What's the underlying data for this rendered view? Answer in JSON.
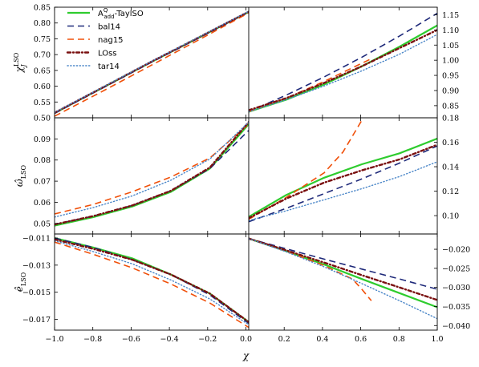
{
  "chart_data": {
    "type": "line",
    "xlabel": "χ",
    "x_ticks": [
      "−1.0",
      "−0.8",
      "−0.6",
      "−0.4",
      "−0.2",
      "0.0",
      "0.2",
      "0.4",
      "0.6",
      "0.8",
      "1.0"
    ],
    "legend": {
      "placement": "top-left",
      "entries": [
        {
          "key": "A",
          "label_main": "A",
          "label_sup": "Q",
          "label_sub": "add",
          "label_rest": "-TaylSO",
          "color": "#2ecc2e",
          "dash": "solid"
        },
        {
          "key": "B",
          "label_main": "bal14",
          "color": "#1f2a7a",
          "dash": "long-dash"
        },
        {
          "key": "N",
          "label_main": "nag15",
          "color": "#f0500a",
          "dash": "long-dash"
        },
        {
          "key": "L",
          "label_main": "LOss",
          "color": "#7a1010",
          "dash": "dash-dot"
        },
        {
          "key": "T",
          "label_main": "tar14",
          "color": "#4a86c8",
          "dash": "dotted"
        }
      ]
    },
    "rows": [
      {
        "ylabel_main": "χ",
        "ylabel_sub": "J",
        "ylabel_sup": "LSO",
        "left": {
          "xlim": [
            -1,
            0
          ],
          "ylim": [
            0.5,
            0.85
          ],
          "yticks": [
            0.5,
            0.55,
            0.6,
            0.65,
            0.7,
            0.75,
            0.8,
            0.85
          ],
          "ytick_labels": [
            "0.50",
            "0.55",
            "0.60",
            "0.65",
            "0.70",
            "0.75",
            "0.80",
            "0.85"
          ],
          "series": [
            {
              "key": "A",
              "x": [
                -1.0,
                -0.75,
                -0.5,
                -0.25,
                0.0
              ],
              "y": [
                0.515,
                0.596,
                0.677,
                0.756,
                0.835
              ]
            },
            {
              "key": "B",
              "x": [
                -1.0,
                -0.75,
                -0.5,
                -0.25,
                0.0
              ],
              "y": [
                0.514,
                0.595,
                0.676,
                0.755,
                0.834
              ]
            },
            {
              "key": "N",
              "x": [
                -1.0,
                -0.75,
                -0.5,
                -0.25,
                0.0
              ],
              "y": [
                0.505,
                0.585,
                0.667,
                0.749,
                0.832
              ]
            },
            {
              "key": "L",
              "x": [
                -1.0,
                -0.75,
                -0.5,
                -0.25,
                0.0
              ],
              "y": [
                0.516,
                0.597,
                0.678,
                0.757,
                0.836
              ]
            },
            {
              "key": "T",
              "x": [
                -1.0,
                -0.75,
                -0.5,
                -0.25,
                0.0
              ],
              "y": [
                0.517,
                0.598,
                0.679,
                0.758,
                0.837
              ]
            }
          ]
        },
        "right": {
          "xlim": [
            0,
            1
          ],
          "ylim": [
            0.81,
            1.175
          ],
          "yticks": [
            0.85,
            0.9,
            0.95,
            1.0,
            1.05,
            1.1,
            1.15
          ],
          "ytick_labels": [
            "0.85",
            "0.90",
            "0.95",
            "1.00",
            "1.05",
            "1.10",
            "1.15"
          ],
          "series": [
            {
              "key": "A",
              "x": [
                0.0,
                0.2,
                0.4,
                0.6,
                0.8,
                1.0
              ],
              "y": [
                0.83,
                0.87,
                0.92,
                0.98,
                1.045,
                1.115
              ]
            },
            {
              "key": "B",
              "x": [
                0.0,
                0.2,
                0.4,
                0.6,
                0.8,
                1.0
              ],
              "y": [
                0.83,
                0.885,
                0.945,
                1.01,
                1.08,
                1.155
              ]
            },
            {
              "key": "N",
              "x": [
                0.0,
                0.2,
                0.4,
                0.6,
                0.65
              ],
              "y": [
                0.83,
                0.875,
                0.93,
                0.99,
                1.005
              ]
            },
            {
              "key": "L",
              "x": [
                0.0,
                0.2,
                0.4,
                0.6,
                0.8,
                1.0
              ],
              "y": [
                0.835,
                0.875,
                0.925,
                0.98,
                1.04,
                1.1
              ]
            },
            {
              "key": "T",
              "x": [
                0.0,
                0.2,
                0.4,
                0.6,
                0.8,
                1.0
              ],
              "y": [
                0.83,
                0.87,
                0.915,
                0.965,
                1.02,
                1.085
              ]
            }
          ]
        }
      },
      {
        "ylabel_main": "ω̂",
        "ylabel_sub": "LSO",
        "ylabel_sup": "",
        "left": {
          "xlim": [
            -1,
            0
          ],
          "ylim": [
            0.045,
            0.1
          ],
          "yticks": [
            0.05,
            0.06,
            0.07,
            0.08,
            0.09
          ],
          "ytick_labels": [
            "0.05",
            "0.06",
            "0.07",
            "0.08",
            "0.09"
          ],
          "series": [
            {
              "key": "A",
              "x": [
                -1.0,
                -0.8,
                -0.6,
                -0.4,
                -0.2,
                0.0
              ],
              "y": [
                0.049,
                0.053,
                0.058,
                0.065,
                0.076,
                0.097
              ]
            },
            {
              "key": "B",
              "x": [
                -1.0,
                -0.8,
                -0.6,
                -0.4,
                -0.2,
                0.0
              ],
              "y": [
                0.0495,
                0.0535,
                0.0585,
                0.0655,
                0.076,
                0.094
              ]
            },
            {
              "key": "N",
              "x": [
                -1.0,
                -0.8,
                -0.6,
                -0.4,
                -0.2,
                0.0
              ],
              "y": [
                0.0545,
                0.059,
                0.065,
                0.072,
                0.081,
                0.097
              ]
            },
            {
              "key": "L",
              "x": [
                -1.0,
                -0.8,
                -0.6,
                -0.4,
                -0.2,
                0.0
              ],
              "y": [
                0.0495,
                0.0535,
                0.0585,
                0.0655,
                0.0765,
                0.098
              ]
            },
            {
              "key": "T",
              "x": [
                -1.0,
                -0.8,
                -0.6,
                -0.4,
                -0.2,
                0.0
              ],
              "y": [
                0.053,
                0.0575,
                0.063,
                0.0705,
                0.0805,
                0.098
              ]
            }
          ]
        },
        "right": {
          "xlim": [
            0,
            1
          ],
          "ylim": [
            0.085,
            0.18
          ],
          "yticks": [
            0.1,
            0.12,
            0.14,
            0.16,
            0.18
          ],
          "ytick_labels": [
            "0.10",
            "0.12",
            "0.14",
            "0.16",
            "0.18"
          ],
          "series": [
            {
              "key": "A",
              "x": [
                0.0,
                0.2,
                0.4,
                0.6,
                0.8,
                1.0
              ],
              "y": [
                0.099,
                0.117,
                0.131,
                0.142,
                0.151,
                0.163
              ]
            },
            {
              "key": "B",
              "x": [
                0.0,
                0.2,
                0.4,
                0.6,
                0.8,
                1.0
              ],
              "y": [
                0.095,
                0.106,
                0.118,
                0.13,
                0.143,
                0.157
              ]
            },
            {
              "key": "N",
              "x": [
                0.0,
                0.2,
                0.4,
                0.5,
                0.6
              ],
              "y": [
                0.097,
                0.115,
                0.135,
                0.152,
                0.178
              ]
            },
            {
              "key": "L",
              "x": [
                0.0,
                0.2,
                0.4,
                0.6,
                0.8,
                1.0
              ],
              "y": [
                0.098,
                0.114,
                0.127,
                0.137,
                0.146,
                0.158
              ]
            },
            {
              "key": "T",
              "x": [
                0.0,
                0.2,
                0.4,
                0.6,
                0.8,
                1.0
              ],
              "y": [
                0.096,
                0.104,
                0.113,
                0.122,
                0.132,
                0.144
              ]
            }
          ]
        }
      },
      {
        "ylabel_main": "ê",
        "ylabel_sub": "LSO",
        "ylabel_sup": "",
        "left": {
          "xlim": [
            -1,
            0
          ],
          "ylim": [
            -0.0178,
            -0.0107
          ],
          "yticks": [
            -0.011,
            -0.013,
            -0.015,
            -0.017
          ],
          "ytick_labels": [
            "−0.011",
            "−0.013",
            "−0.015",
            "−0.017"
          ],
          "series": [
            {
              "key": "A",
              "x": [
                -1.0,
                -0.8,
                -0.6,
                -0.4,
                -0.2,
                0.0
              ],
              "y": [
                -0.011,
                -0.0117,
                -0.0125,
                -0.0137,
                -0.0151,
                -0.0172
              ]
            },
            {
              "key": "B",
              "x": [
                -1.0,
                -0.8,
                -0.6,
                -0.4,
                -0.2,
                0.0
              ],
              "y": [
                -0.011,
                -0.0117,
                -0.0126,
                -0.0137,
                -0.0152,
                -0.0173
              ]
            },
            {
              "key": "N",
              "x": [
                -1.0,
                -0.8,
                -0.6,
                -0.4,
                -0.2,
                0.0
              ],
              "y": [
                -0.0113,
                -0.0122,
                -0.0132,
                -0.0144,
                -0.0158,
                -0.0176
              ]
            },
            {
              "key": "L",
              "x": [
                -1.0,
                -0.8,
                -0.6,
                -0.4,
                -0.2,
                0.0
              ],
              "y": [
                -0.0111,
                -0.0118,
                -0.0126,
                -0.0137,
                -0.0151,
                -0.0172
              ]
            },
            {
              "key": "T",
              "x": [
                -1.0,
                -0.8,
                -0.6,
                -0.4,
                -0.2,
                0.0
              ],
              "y": [
                -0.0112,
                -0.012,
                -0.0129,
                -0.0141,
                -0.0155,
                -0.0174
              ]
            }
          ]
        },
        "right": {
          "xlim": [
            0,
            1
          ],
          "ylim": [
            -0.0412,
            -0.016
          ],
          "yticks": [
            -0.02,
            -0.025,
            -0.03,
            -0.035,
            -0.04
          ],
          "ytick_labels": [
            "−0.020",
            "−0.025",
            "−0.030",
            "−0.035",
            "−0.040"
          ],
          "series": [
            {
              "key": "A",
              "x": [
                0.0,
                0.2,
                0.4,
                0.6,
                0.8,
                1.0
              ],
              "y": [
                -0.0172,
                -0.0205,
                -0.024,
                -0.0278,
                -0.0315,
                -0.0352
              ]
            },
            {
              "key": "B",
              "x": [
                0.0,
                0.2,
                0.4,
                0.6,
                0.8,
                1.0
              ],
              "y": [
                -0.0172,
                -0.0199,
                -0.0226,
                -0.0252,
                -0.0278,
                -0.0305
              ]
            },
            {
              "key": "N",
              "x": [
                0.0,
                0.2,
                0.4,
                0.55,
                0.6,
                0.65
              ],
              "y": [
                -0.0172,
                -0.0205,
                -0.0243,
                -0.0278,
                -0.0305,
                -0.0335
              ]
            },
            {
              "key": "L",
              "x": [
                0.0,
                0.2,
                0.4,
                0.6,
                0.8,
                1.0
              ],
              "y": [
                -0.0172,
                -0.0203,
                -0.0235,
                -0.0268,
                -0.03,
                -0.0333
              ]
            },
            {
              "key": "T",
              "x": [
                0.0,
                0.2,
                0.4,
                0.6,
                0.8,
                1.0
              ],
              "y": [
                -0.0172,
                -0.0207,
                -0.0246,
                -0.029,
                -0.0335,
                -0.0382
              ]
            }
          ]
        }
      }
    ]
  }
}
